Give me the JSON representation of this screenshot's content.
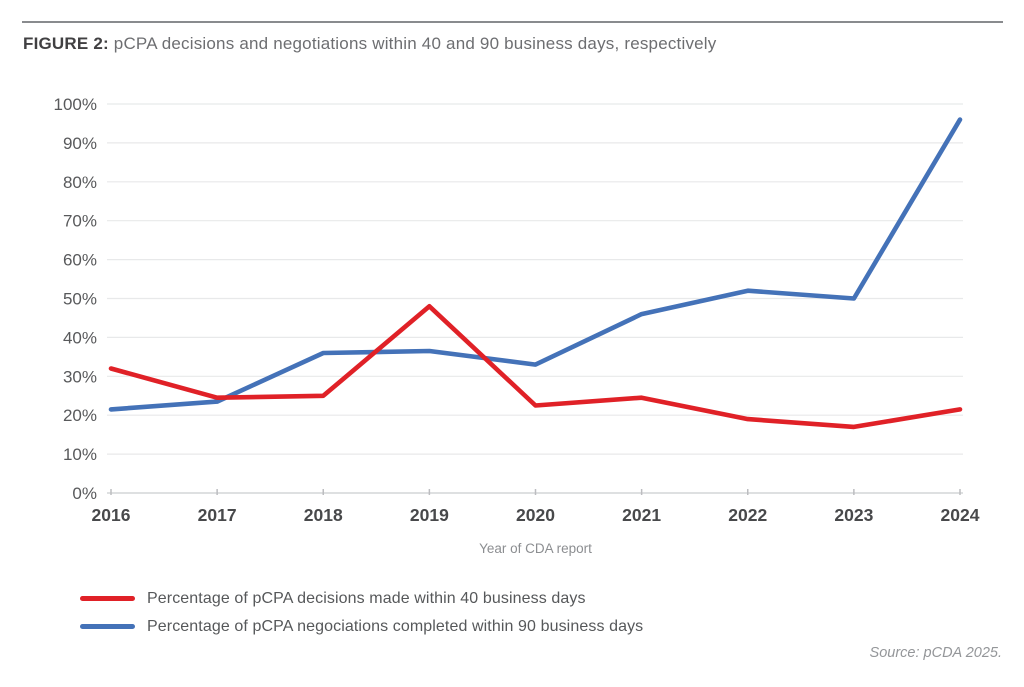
{
  "header": {
    "figure_label": "FIGURE 2:",
    "title": " pCPA decisions and negotiations within 40 and 90 business days, respectively"
  },
  "chart_data": {
    "type": "line",
    "title": "FIGURE 2: pCPA decisions and negotiations within 40 and 90 business days, respectively",
    "categories": [
      "2016",
      "2017",
      "2018",
      "2019",
      "2020",
      "2021",
      "2022",
      "2023",
      "2024"
    ],
    "series": [
      {
        "name": "Percentage of pCPA decisions made within 40 business days",
        "color": "#e02127",
        "values": [
          32,
          24.5,
          25,
          48,
          22.5,
          24.5,
          19,
          17,
          21.5
        ]
      },
      {
        "name": "Percentage of pCPA negociations completed within 90 business days",
        "color": "#4472b8",
        "values": [
          21.5,
          23.5,
          36,
          36.5,
          33,
          46,
          52,
          50,
          96
        ]
      }
    ],
    "xlabel": "Year of CDA report",
    "ylabel": "",
    "ylim": [
      0,
      100
    ],
    "y_ticks": [
      0,
      10,
      20,
      30,
      40,
      50,
      60,
      70,
      80,
      90,
      100
    ],
    "y_tick_suffix": "%",
    "grid": "horizontal",
    "legend_position": "bottom-left"
  },
  "footer": {
    "source": "Source: pCDA 2025."
  },
  "colors": {
    "grid": "#e8e9ea",
    "axis": "#d4d5d7",
    "tick": "#bcbdc0",
    "rule": "#898b8e",
    "title_dark": "#414042",
    "title_gray": "#6d6e71",
    "label_gray": "#58595b",
    "source_gray": "#949699"
  }
}
